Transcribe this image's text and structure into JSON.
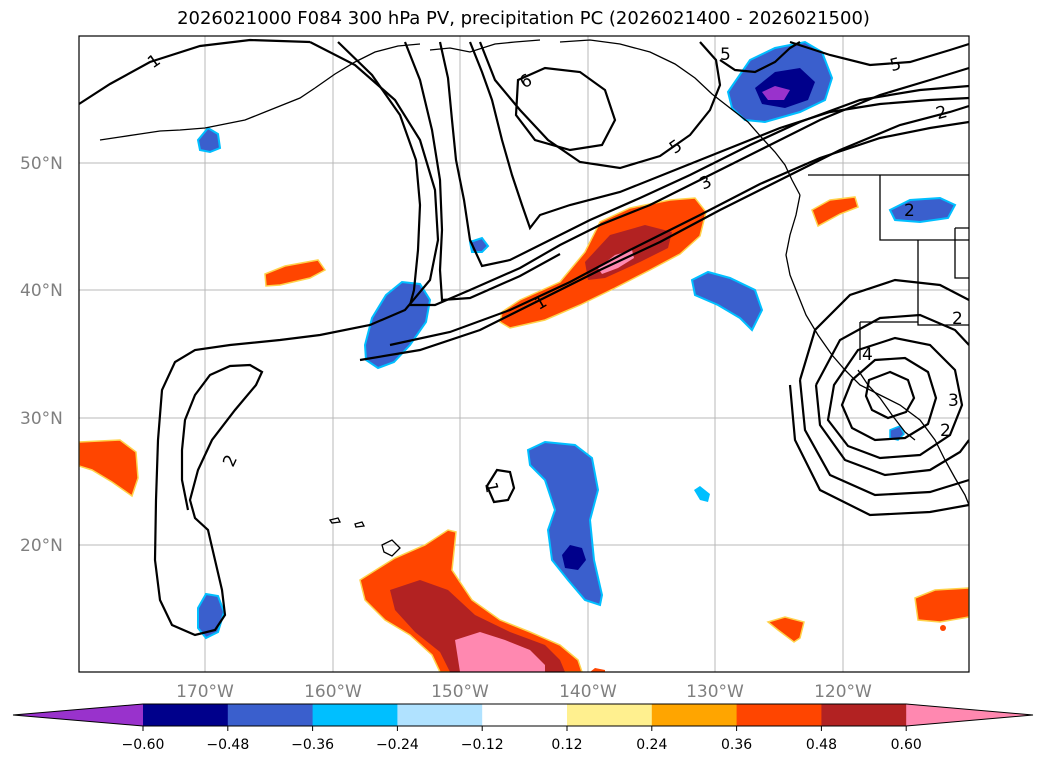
{
  "title": "2026021000 F084 300 hPa PV, precipitation PC (2026021400 - 2026021500)",
  "map": {
    "lat_labels": [
      "50°N",
      "40°N",
      "30°N",
      "20°N"
    ],
    "lon_labels": [
      "170°W",
      "160°W",
      "150°W",
      "140°W",
      "130°W",
      "120°W"
    ],
    "contour_labels": [
      "1",
      "5",
      "6",
      "5",
      "5",
      "2",
      "3",
      "1",
      "2",
      "1",
      "4",
      "3",
      "2",
      "2",
      "2"
    ],
    "gridlines": true
  },
  "colorbar": {
    "ticks": [
      "−0.60",
      "−0.48",
      "−0.36",
      "−0.24",
      "−0.12",
      "0.12",
      "0.24",
      "0.36",
      "0.48",
      "0.60"
    ],
    "colors": [
      "#9932cc",
      "#00008b",
      "#3a5fcd",
      "#00bfff",
      "#b0e2ff",
      "#ffffff",
      "#fff08f",
      "#ffa500",
      "#ff4500",
      "#b22222",
      "#ff88b0"
    ],
    "extend": "both"
  }
}
